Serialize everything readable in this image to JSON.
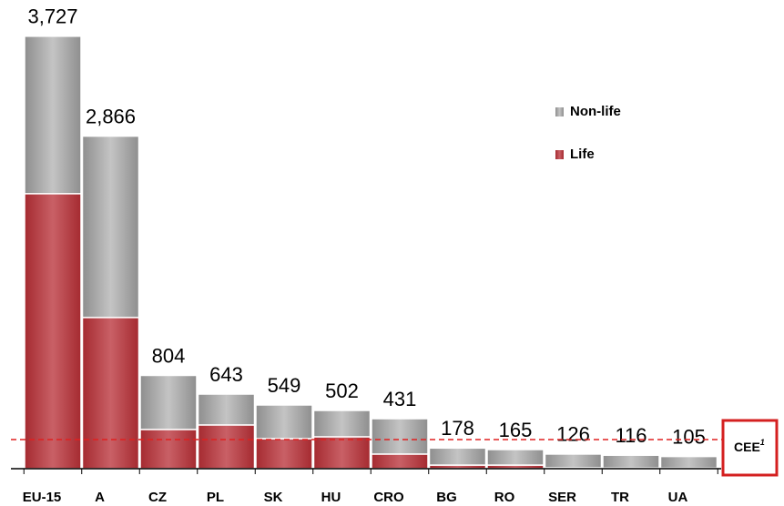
{
  "chart_data": {
    "type": "stacked_bar",
    "categories": [
      "EU-15",
      "A",
      "CZ",
      "PL",
      "SK",
      "HU",
      "CRO",
      "BG",
      "RO",
      "SER",
      "TR",
      "UA"
    ],
    "series": [
      {
        "name": "Life",
        "color": "#b3373d",
        "values": [
          2370,
          1303,
          338,
          377,
          259,
          275,
          126,
          31,
          31,
          8,
          6,
          5
        ]
      },
      {
        "name": "Non-life",
        "color": "#a8a8a8",
        "values": [
          1357,
          1563,
          466,
          266,
          290,
          227,
          305,
          147,
          134,
          118,
          110,
          100
        ]
      }
    ],
    "totals": [
      3727,
      2866,
      804,
      643,
      549,
      502,
      431,
      178,
      165,
      126,
      116,
      105
    ],
    "total_labels": [
      "3,727",
      "2,866",
      "804",
      "643",
      "549",
      "502",
      "431",
      "178",
      "165",
      "126",
      "116",
      "105"
    ],
    "reference_line": {
      "value": 251,
      "label": "CEE",
      "note": "1",
      "color": "#e02020"
    },
    "ylim": [
      0,
      4000
    ],
    "legend": "upper right"
  }
}
